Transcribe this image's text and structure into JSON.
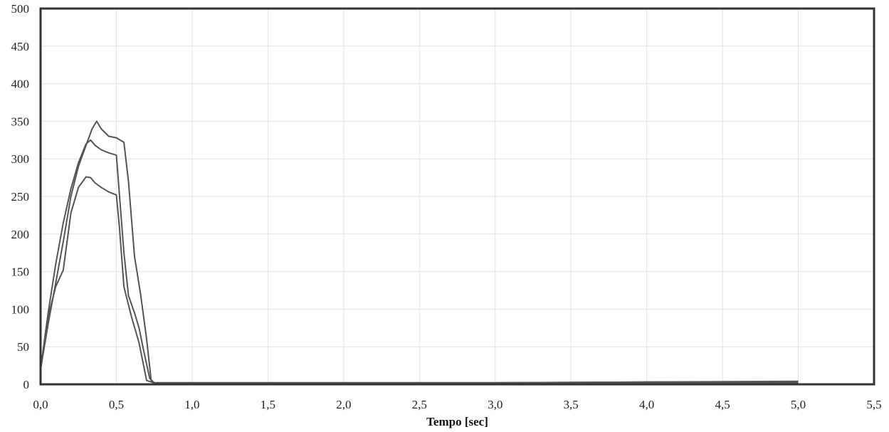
{
  "chart_data": {
    "type": "line",
    "title": "",
    "xlabel": "Tempo [sec]",
    "ylabel": "",
    "xlim": [
      0.0,
      5.5
    ],
    "ylim": [
      0,
      500
    ],
    "grid": true,
    "legend": "none",
    "x_ticks": [
      "0,0",
      "0,5",
      "1,0",
      "1,5",
      "2,0",
      "2,5",
      "3,0",
      "3,5",
      "4,0",
      "4,5",
      "5,0",
      "5,5"
    ],
    "y_ticks": [
      "0",
      "50",
      "100",
      "150",
      "200",
      "250",
      "300",
      "350",
      "400",
      "450",
      "500"
    ],
    "colors": {
      "line": "#555555",
      "frame": "#333333",
      "grid": "#e4e4e4"
    },
    "series": [
      {
        "x": [
          0.0,
          0.05,
          0.1,
          0.15,
          0.2,
          0.25,
          0.3,
          0.33,
          0.36,
          0.4,
          0.45,
          0.5,
          0.55,
          0.58,
          0.62,
          0.65,
          0.68,
          0.72,
          0.75,
          1.0,
          2.0,
          3.0,
          4.0,
          5.0
        ],
        "y": [
          20,
          95,
          160,
          215,
          260,
          295,
          320,
          325,
          318,
          312,
          308,
          305,
          175,
          118,
          95,
          75,
          45,
          8,
          2,
          2,
          2,
          2,
          3,
          3
        ]
      },
      {
        "x": [
          0.0,
          0.05,
          0.1,
          0.15,
          0.2,
          0.25,
          0.3,
          0.33,
          0.36,
          0.4,
          0.45,
          0.5,
          0.52,
          0.55,
          0.6,
          0.65,
          0.7,
          0.75,
          1.0,
          2.0,
          3.0,
          4.0,
          5.0
        ],
        "y": [
          20,
          90,
          130,
          152,
          228,
          262,
          276,
          275,
          268,
          262,
          256,
          252,
          210,
          130,
          90,
          55,
          5,
          2,
          2,
          2,
          2,
          2,
          2
        ]
      },
      {
        "x": [
          0.0,
          0.05,
          0.1,
          0.15,
          0.2,
          0.25,
          0.3,
          0.34,
          0.37,
          0.4,
          0.45,
          0.5,
          0.55,
          0.58,
          0.62,
          0.66,
          0.7,
          0.73,
          0.75,
          1.0,
          2.0,
          3.0,
          4.0,
          5.0
        ],
        "y": [
          20,
          80,
          135,
          190,
          250,
          290,
          318,
          340,
          350,
          340,
          330,
          328,
          322,
          270,
          170,
          120,
          60,
          5,
          2,
          2,
          2,
          2,
          3,
          4
        ]
      }
    ]
  }
}
